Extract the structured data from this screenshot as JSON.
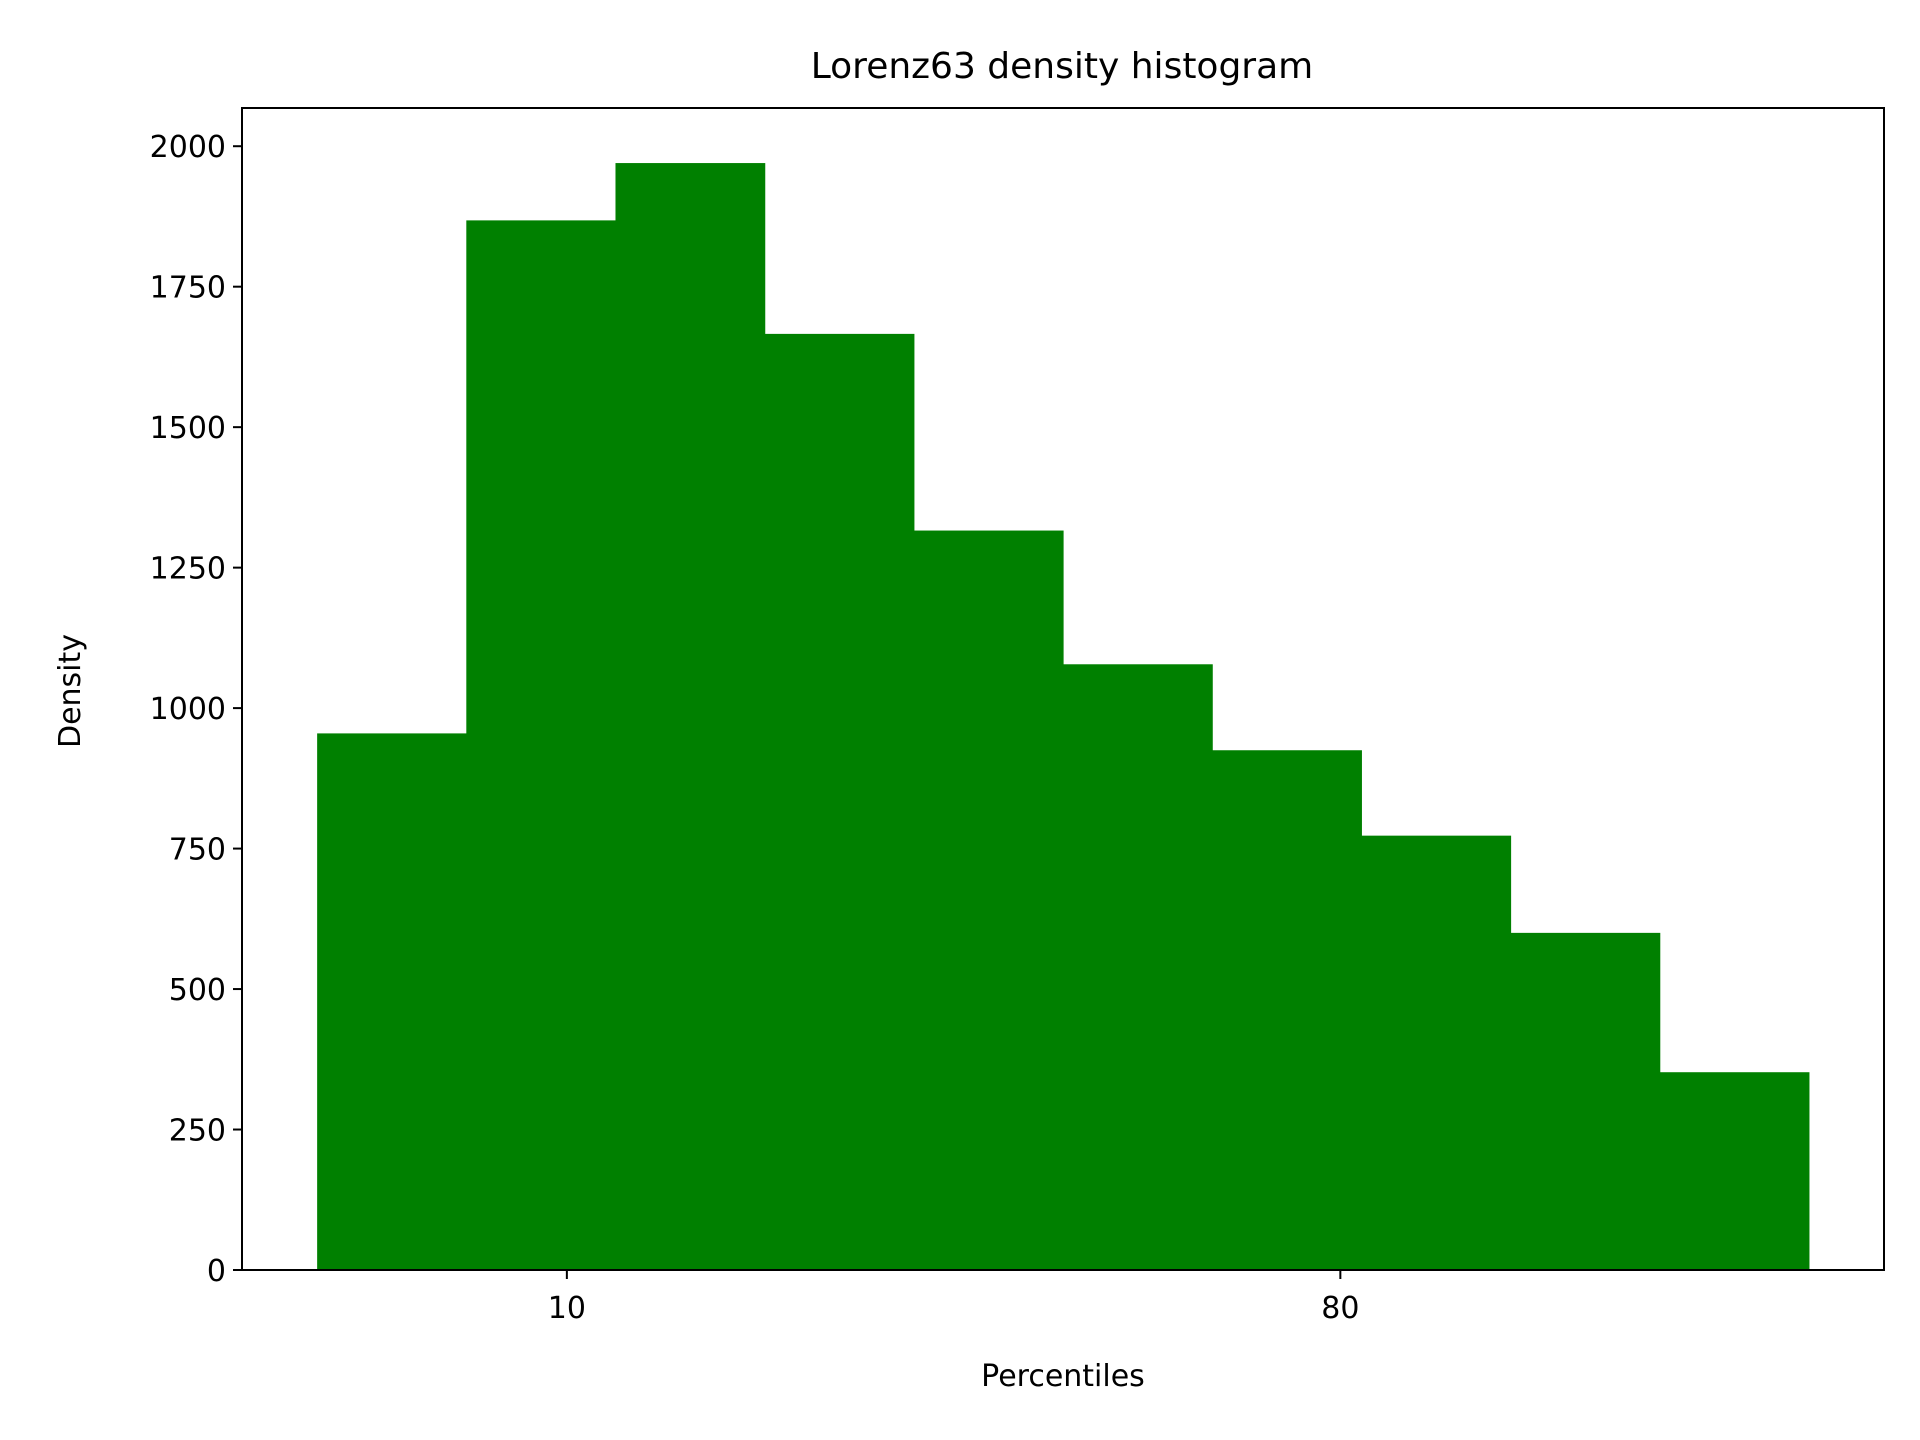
{
  "chart_data": {
    "type": "bar",
    "title": "Lorenz63 density histogram",
    "xlabel": "Percentiles",
    "ylabel": "Density",
    "bin_edges": [
      -12.6,
      0.9,
      14.4,
      27.9,
      41.4,
      54.9,
      68.4,
      81.9,
      95.4,
      108.9,
      122.4
    ],
    "values": [
      955,
      1868,
      1970,
      1666,
      1316,
      1078,
      925,
      773,
      600,
      352
    ],
    "xticks": [
      10,
      80
    ],
    "xtick_labels": [
      "10",
      "80"
    ],
    "yticks": [
      0,
      250,
      500,
      750,
      1000,
      1250,
      1500,
      1750,
      2000
    ],
    "yticklabels": [
      "0",
      "250",
      "500",
      "750",
      "1000",
      "1250",
      "1500",
      "1750",
      "2000"
    ],
    "xlim": [
      -19.4,
      129.2
    ],
    "ylim": [
      0,
      2068
    ],
    "grid": false,
    "bar_color": "#008000"
  }
}
